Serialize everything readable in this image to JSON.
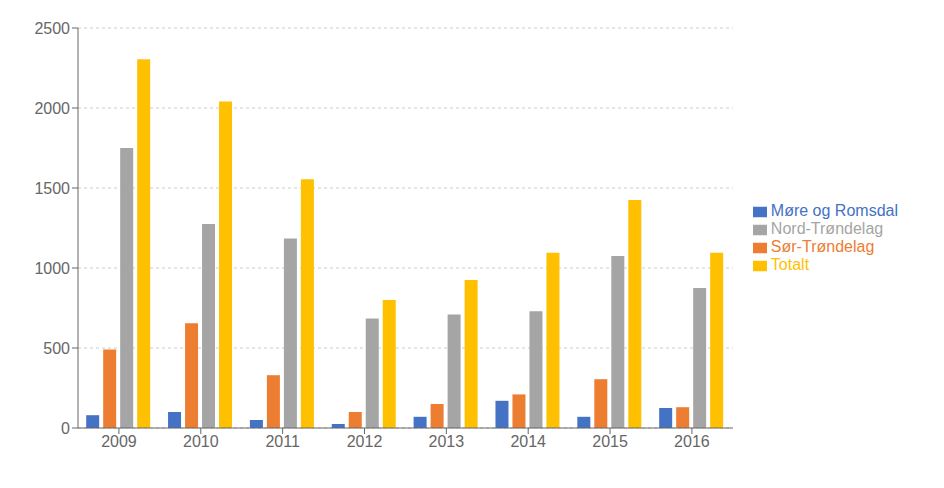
{
  "chart_data": {
    "type": "bar",
    "categories": [
      "2009",
      "2010",
      "2011",
      "2012",
      "2013",
      "2014",
      "2015",
      "2016"
    ],
    "series": [
      {
        "name": "Møre og Romsdal",
        "color": "#4472C4",
        "values": [
          80,
          100,
          50,
          25,
          70,
          170,
          70,
          125
        ]
      },
      {
        "name": "Sør-Trøndelag",
        "color": "#ED7D31",
        "values": [
          490,
          655,
          330,
          100,
          150,
          210,
          305,
          130
        ]
      },
      {
        "name": "Nord-Trøndelag",
        "color": "#A5A5A5",
        "values": [
          1750,
          1275,
          1185,
          685,
          710,
          730,
          1075,
          875
        ]
      },
      {
        "name": "Totalt",
        "color": "#FFC000",
        "values": [
          2305,
          2040,
          1555,
          800,
          925,
          1095,
          1425,
          1095
        ]
      }
    ],
    "ylim": [
      0,
      2500
    ],
    "yticks": [
      0,
      500,
      1000,
      1500,
      2000,
      2500
    ],
    "grid": true,
    "legend": "right"
  }
}
